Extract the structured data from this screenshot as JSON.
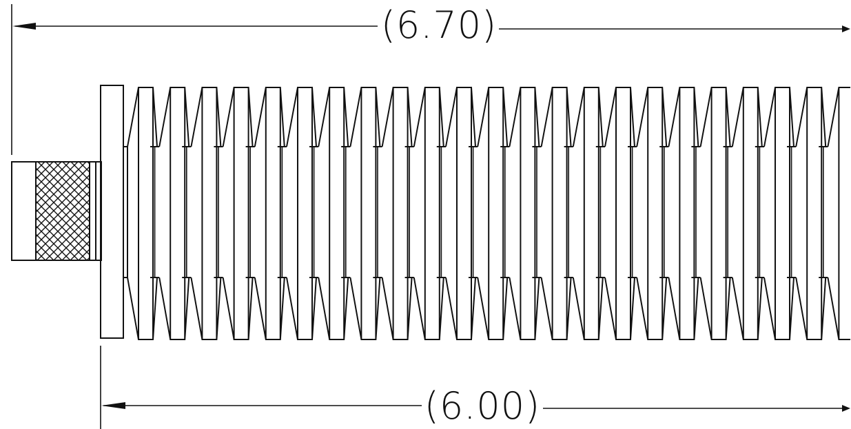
{
  "dimensions": {
    "overall_length_label": "(6.70)",
    "body_length_label": "(6.00)"
  },
  "colors": {
    "line": "#111111",
    "background": "#ffffff"
  }
}
